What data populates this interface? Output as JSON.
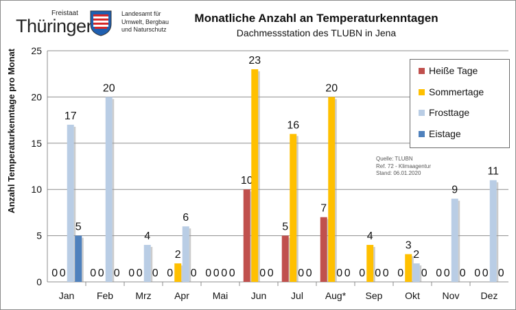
{
  "header": {
    "logo_top": "Freistaat",
    "logo_main": "Thüringen",
    "agency_lines": [
      "Landesamt für",
      "Umwelt, Bergbau",
      "und Naturschutz"
    ]
  },
  "chart_data": {
    "type": "bar",
    "title": "Monatliche Anzahl an Temperaturkenntagen",
    "subtitle": "Dachmessstation des TLUBN  in Jena",
    "ylabel": "Anzahl Temperaturkenntage pro Monat",
    "xlabel": "",
    "ylim": [
      0,
      25
    ],
    "yticks": [
      0,
      5,
      10,
      15,
      20,
      25
    ],
    "grid": true,
    "legend_position": "top-right",
    "categories": [
      "Jan",
      "Feb",
      "Mrz",
      "Apr",
      "Mai",
      "Jun",
      "Jul",
      "Aug*",
      "Sep",
      "Okt",
      "Nov",
      "Dez"
    ],
    "series": [
      {
        "name": "Heiße Tage",
        "color": "#c0504d",
        "values": [
          0,
          0,
          0,
          0,
          0,
          10,
          5,
          7,
          0,
          0,
          0,
          0
        ]
      },
      {
        "name": "Sommertage",
        "color": "#ffc000",
        "values": [
          0,
          0,
          0,
          2,
          0,
          23,
          16,
          20,
          4,
          3,
          0,
          0
        ]
      },
      {
        "name": "Frosttage",
        "color": "#b9cde5",
        "values": [
          17,
          20,
          4,
          6,
          0,
          0,
          0,
          0,
          0,
          2,
          9,
          11
        ]
      },
      {
        "name": "Eistage",
        "color": "#4f81bd",
        "values": [
          5,
          0,
          0,
          0,
          0,
          0,
          0,
          0,
          0,
          0,
          0,
          0
        ]
      }
    ]
  },
  "source_note": [
    "Quelle: TLUBN",
    "Ref. 72 - Klimaagentur",
    "Stand: 06.01.2020"
  ]
}
